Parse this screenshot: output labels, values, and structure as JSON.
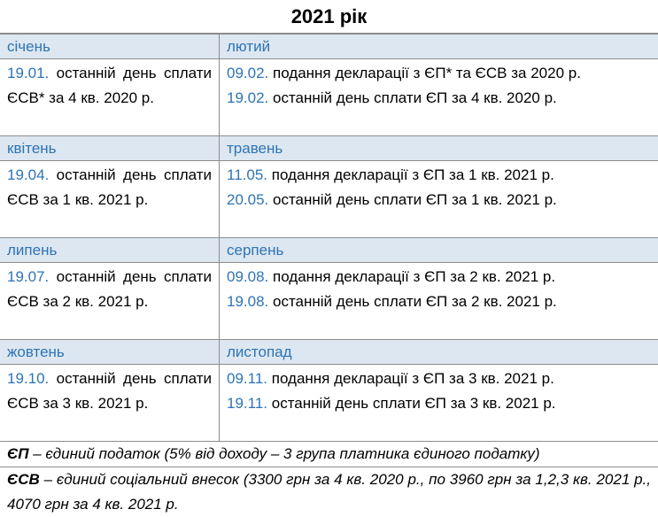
{
  "title": "2021 рік",
  "rows": [
    {
      "left": {
        "month": "січень",
        "entries": [
          {
            "date": "19.01.",
            "text": "останній день сплати ЄСВ* за 4 кв. 2020 р."
          }
        ]
      },
      "right": {
        "month": "лютий",
        "entries": [
          {
            "date": "09.02.",
            "text": "подання декларації з ЄП* та ЄСВ за 2020 р."
          },
          {
            "date": "19.02.",
            "text": "останній день сплати ЄП за 4 кв. 2020 р."
          }
        ]
      }
    },
    {
      "left": {
        "month": "квітень",
        "entries": [
          {
            "date": "19.04.",
            "text": "останній день сплати ЄСВ за 1 кв. 2021 р."
          }
        ]
      },
      "right": {
        "month": "травень",
        "entries": [
          {
            "date": "11.05.",
            "text": "подання декларації з ЄП за 1 кв. 2021 р."
          },
          {
            "date": "20.05.",
            "text": "останній день сплати ЄП за 1 кв. 2021 р."
          }
        ]
      }
    },
    {
      "left": {
        "month": "липень",
        "entries": [
          {
            "date": "19.07.",
            "text": "останній день сплати ЄСВ за 2 кв. 2021 р."
          }
        ]
      },
      "right": {
        "month": "серпень",
        "entries": [
          {
            "date": "09.08.",
            "text": "подання декларації з ЄП за 2 кв. 2021 р."
          },
          {
            "date": "19.08.",
            "text": "останній день сплати ЄП за 2 кв. 2021 р."
          }
        ]
      }
    },
    {
      "left": {
        "month": "жовтень",
        "entries": [
          {
            "date": "19.10.",
            "text": "останній день сплати ЄСВ за 3 кв. 2021 р."
          }
        ]
      },
      "right": {
        "month": "листопад",
        "entries": [
          {
            "date": "09.11.",
            "text": "подання декларації з ЄП за 3 кв. 2021 р."
          },
          {
            "date": "19.11.",
            "text": "останній день сплати ЄП за 3 кв. 2021 р."
          }
        ]
      }
    }
  ],
  "notes": {
    "ep": {
      "abbr": "ЄП",
      "text": " – єдиний податок (5% від доходу – 3 група платника єдиного податку)"
    },
    "esv": {
      "abbr": "ЄСВ",
      "text": " – єдиний соціальний внесок (3300 грн за 4 кв. 2020 р., по 3960 грн за 1,2,3 кв. 2021 р., 4070 грн за 4 кв. 2021 р."
    }
  },
  "colors": {
    "accent": "#2e74b5",
    "month_bg": "#dde7f1",
    "border": "#8c8c8c"
  }
}
